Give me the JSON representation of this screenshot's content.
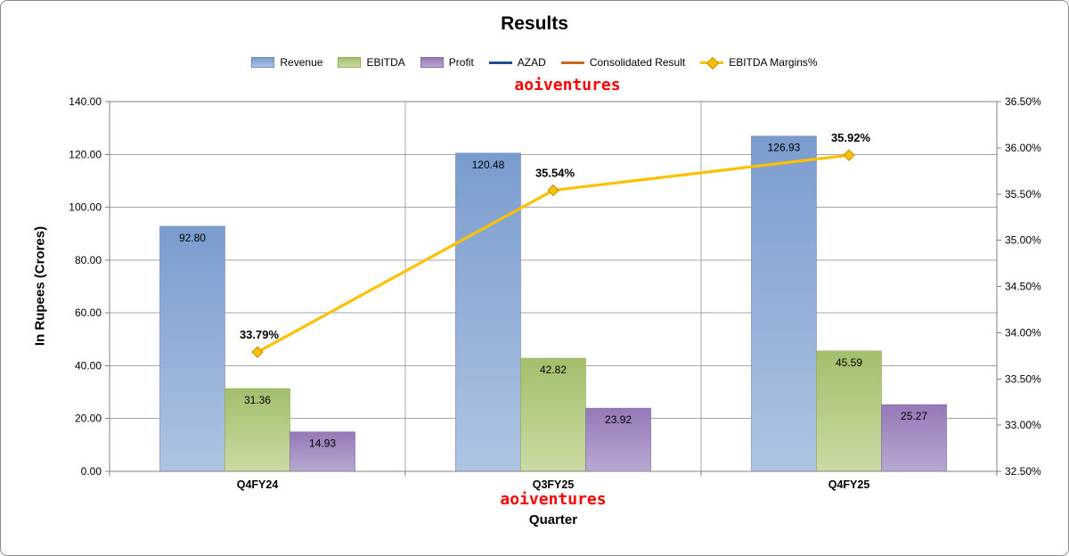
{
  "watermark_top": "aoiventures",
  "watermark_bottom": "aoiventures",
  "colors": {
    "grid": "#a6a6a6",
    "axis": "#808080",
    "watermark": "#ff0000",
    "bar_label": "#000000"
  },
  "chart_data": {
    "type": "bar+line",
    "title": "Results",
    "xlabel": "Quarter",
    "ylabel": "In Rupees (Crores)",
    "legend_position": "top",
    "grid": true,
    "categories": [
      "Q4FY24",
      "Q3FY25",
      "Q4FY25"
    ],
    "series": [
      {
        "name": "Revenue",
        "type": "bar",
        "axis": "left",
        "legend": "box",
        "values": [
          92.8,
          120.48,
          126.93
        ],
        "labels": [
          "92.80",
          "120.48",
          "126.93"
        ],
        "color_top": "#7a9cce",
        "color_bottom": "#aec4e2",
        "edge": "#6b8cbd"
      },
      {
        "name": "EBITDA",
        "type": "bar",
        "axis": "left",
        "legend": "box",
        "values": [
          31.36,
          42.82,
          45.59
        ],
        "labels": [
          "31.36",
          "42.82",
          "45.59"
        ],
        "color_top": "#a2bf6c",
        "color_bottom": "#c9dba2",
        "edge": "#93af5e"
      },
      {
        "name": "Profit",
        "type": "bar",
        "axis": "left",
        "legend": "box",
        "values": [
          14.93,
          23.92,
          25.27
        ],
        "labels": [
          "14.93",
          "23.92",
          "25.27"
        ],
        "color_top": "#9579b7",
        "color_bottom": "#b8a8d1",
        "edge": "#8568a8"
      },
      {
        "name": "AZAD",
        "type": "line",
        "axis": "left",
        "legend": "line",
        "values": [],
        "labels": [],
        "color": "#1f4e8c"
      },
      {
        "name": "Consolidated Result",
        "type": "line",
        "axis": "left",
        "legend": "line",
        "values": [],
        "labels": [],
        "color": "#cd6620"
      },
      {
        "name": "EBITDA Margins%",
        "type": "line-marker",
        "axis": "right",
        "legend": "line-marker",
        "values": [
          33.79,
          35.54,
          35.92
        ],
        "labels": [
          "33.79%",
          "35.54%",
          "35.92%"
        ],
        "color": "#ffc000",
        "marker_edge": "#bf9000"
      }
    ],
    "y_left": {
      "min": 0,
      "max": 140,
      "step": 20,
      "ticks": [
        "0.00",
        "20.00",
        "40.00",
        "60.00",
        "80.00",
        "100.00",
        "120.00",
        "140.00"
      ]
    },
    "y_right": {
      "min": 32.5,
      "max": 36.5,
      "step": 0.5,
      "ticks": [
        "32.50%",
        "33.00%",
        "33.50%",
        "34.00%",
        "34.50%",
        "35.00%",
        "35.50%",
        "36.00%",
        "36.50%"
      ]
    }
  }
}
